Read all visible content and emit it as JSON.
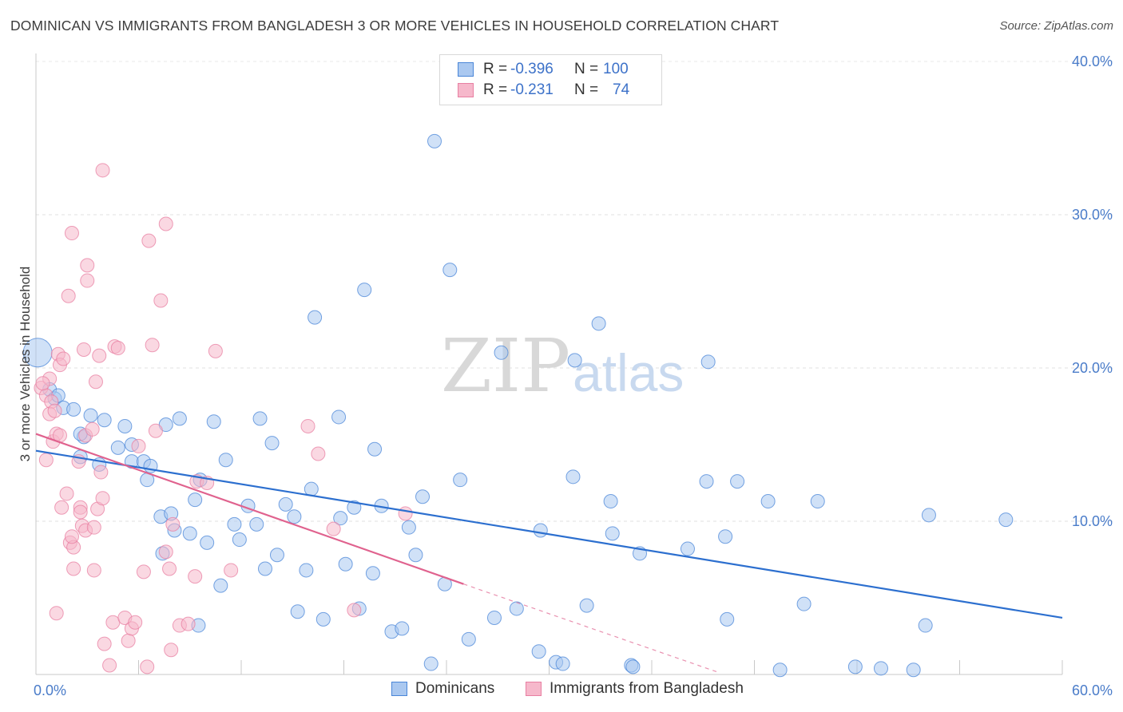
{
  "header": {
    "title": "DOMINICAN VS IMMIGRANTS FROM BANGLADESH 3 OR MORE VEHICLES IN HOUSEHOLD CORRELATION CHART",
    "source": "Source: ZipAtlas.com"
  },
  "watermark": {
    "zip": "ZIP",
    "atlas": "atlas"
  },
  "legend": {
    "rows": [
      {
        "swatch_color": "#aac8f0",
        "r_label": "R =",
        "r_value": "-0.396",
        "n_label": "N =",
        "n_value": "100"
      },
      {
        "swatch_color": "#f6b8cb",
        "r_label": "R =",
        "r_value": "-0.231",
        "n_label": "N =",
        "n_value": "74"
      }
    ]
  },
  "bottom_legend": {
    "items": [
      {
        "label": "Dominicans",
        "color": "#aac8f0"
      },
      {
        "label": "Immigrants from Bangladesh",
        "color": "#f6b8cb"
      }
    ]
  },
  "chart_data": {
    "type": "scatter",
    "title": "DOMINICAN VS IMMIGRANTS FROM BANGLADESH 3 OR MORE VEHICLES IN HOUSEHOLD CORRELATION CHART",
    "ylabel": "3 or more Vehicles in Household",
    "xlabel": "",
    "xlim": [
      0,
      60
    ],
    "ylim": [
      0,
      40
    ],
    "x_ticks": [
      {
        "value": 0,
        "label": "0.0%"
      },
      {
        "value": 60,
        "label": "60.0%"
      }
    ],
    "y_ticks": [
      {
        "value": 10,
        "label": "10.0%"
      },
      {
        "value": 20,
        "label": "20.0%"
      },
      {
        "value": 30,
        "label": "30.0%"
      },
      {
        "value": 40,
        "label": "40.0%"
      }
    ],
    "grid": true,
    "legend_position": "top-center",
    "series": [
      {
        "name": "Dominicans",
        "color": "#4a86d8",
        "fill": "#aac8f0",
        "trend": {
          "x0": 0,
          "y0": 14.6,
          "x1": 60,
          "y1": 3.7,
          "color": "#2c6fcf"
        },
        "points": [
          [
            0.1,
            21.0
          ],
          [
            0.8,
            18.6
          ],
          [
            1.1,
            18.0
          ],
          [
            1.6,
            17.4
          ],
          [
            2.2,
            17.3
          ],
          [
            2.8,
            15.5
          ],
          [
            3.2,
            16.9
          ],
          [
            3.7,
            13.7
          ],
          [
            2.6,
            14.2
          ],
          [
            4.0,
            16.6
          ],
          [
            4.8,
            14.8
          ],
          [
            5.2,
            16.2
          ],
          [
            5.6,
            15.0
          ],
          [
            5.6,
            13.9
          ],
          [
            6.3,
            13.9
          ],
          [
            6.5,
            12.7
          ],
          [
            6.7,
            13.6
          ],
          [
            7.4,
            7.9
          ],
          [
            7.3,
            10.3
          ],
          [
            7.6,
            16.3
          ],
          [
            7.9,
            10.5
          ],
          [
            8.1,
            9.4
          ],
          [
            8.4,
            16.7
          ],
          [
            9.0,
            9.2
          ],
          [
            9.3,
            11.4
          ],
          [
            9.6,
            12.7
          ],
          [
            9.5,
            3.2
          ],
          [
            10.0,
            8.6
          ],
          [
            10.4,
            16.5
          ],
          [
            10.8,
            5.8
          ],
          [
            11.1,
            14.0
          ],
          [
            11.6,
            9.8
          ],
          [
            11.9,
            8.8
          ],
          [
            12.4,
            11.0
          ],
          [
            12.9,
            9.8
          ],
          [
            13.1,
            16.7
          ],
          [
            13.4,
            6.9
          ],
          [
            13.8,
            15.1
          ],
          [
            14.1,
            7.8
          ],
          [
            14.6,
            11.1
          ],
          [
            15.1,
            10.3
          ],
          [
            15.3,
            4.1
          ],
          [
            15.8,
            6.8
          ],
          [
            16.1,
            12.1
          ],
          [
            16.3,
            23.3
          ],
          [
            16.8,
            3.6
          ],
          [
            17.7,
            16.8
          ],
          [
            17.8,
            10.2
          ],
          [
            18.1,
            7.2
          ],
          [
            18.6,
            10.9
          ],
          [
            18.9,
            4.3
          ],
          [
            19.2,
            25.1
          ],
          [
            19.7,
            6.6
          ],
          [
            19.8,
            14.7
          ],
          [
            20.2,
            11.0
          ],
          [
            20.8,
            2.8
          ],
          [
            21.4,
            3.0
          ],
          [
            21.8,
            9.6
          ],
          [
            22.2,
            7.8
          ],
          [
            22.6,
            11.6
          ],
          [
            23.1,
            0.7
          ],
          [
            23.3,
            34.8
          ],
          [
            23.9,
            5.9
          ],
          [
            24.2,
            26.4
          ],
          [
            24.8,
            12.7
          ],
          [
            25.3,
            2.3
          ],
          [
            26.8,
            3.7
          ],
          [
            27.2,
            21.0
          ],
          [
            28.1,
            4.3
          ],
          [
            29.4,
            1.5
          ],
          [
            29.5,
            9.4
          ],
          [
            30.4,
            0.8
          ],
          [
            30.8,
            0.7
          ],
          [
            31.4,
            12.9
          ],
          [
            31.5,
            20.5
          ],
          [
            32.2,
            4.5
          ],
          [
            32.9,
            22.9
          ],
          [
            33.6,
            11.3
          ],
          [
            33.7,
            9.2
          ],
          [
            34.8,
            0.6
          ],
          [
            34.9,
            0.5
          ],
          [
            35.3,
            7.9
          ],
          [
            38.1,
            8.2
          ],
          [
            39.2,
            12.6
          ],
          [
            39.3,
            20.4
          ],
          [
            40.3,
            9.0
          ],
          [
            40.4,
            3.6
          ],
          [
            41.0,
            12.6
          ],
          [
            42.8,
            11.3
          ],
          [
            43.5,
            0.3
          ],
          [
            44.9,
            4.6
          ],
          [
            45.7,
            11.3
          ],
          [
            47.9,
            0.5
          ],
          [
            49.4,
            0.4
          ],
          [
            51.3,
            0.3
          ],
          [
            52.0,
            3.2
          ],
          [
            52.2,
            10.4
          ],
          [
            56.7,
            10.1
          ],
          [
            1.3,
            18.2
          ],
          [
            2.6,
            15.7
          ]
        ]
      },
      {
        "name": "Immigrants from Bangladesh",
        "color": "#e87fa2",
        "fill": "#f6b8cb",
        "trend": {
          "x0": 0,
          "y0": 15.7,
          "x1": 25,
          "y1": 5.9,
          "color": "#e0628e"
        },
        "trend_extension": {
          "x0": 25,
          "y0": 5.9,
          "x1": 40,
          "y1": 0.1
        },
        "points": [
          [
            0.3,
            18.7
          ],
          [
            0.6,
            18.2
          ],
          [
            0.8,
            19.3
          ],
          [
            0.9,
            17.8
          ],
          [
            1.0,
            15.2
          ],
          [
            0.6,
            14.0
          ],
          [
            0.8,
            17.0
          ],
          [
            1.1,
            17.2
          ],
          [
            1.2,
            15.7
          ],
          [
            1.4,
            15.6
          ],
          [
            1.2,
            4.0
          ],
          [
            1.3,
            20.9
          ],
          [
            1.4,
            20.2
          ],
          [
            1.6,
            20.6
          ],
          [
            1.5,
            10.9
          ],
          [
            1.8,
            11.8
          ],
          [
            1.9,
            24.7
          ],
          [
            2.0,
            8.6
          ],
          [
            2.1,
            28.8
          ],
          [
            2.2,
            8.3
          ],
          [
            2.2,
            6.9
          ],
          [
            2.1,
            9.0
          ],
          [
            2.5,
            13.9
          ],
          [
            2.6,
            10.9
          ],
          [
            2.6,
            10.6
          ],
          [
            2.7,
            9.7
          ],
          [
            2.8,
            21.2
          ],
          [
            2.9,
            9.4
          ],
          [
            2.9,
            15.6
          ],
          [
            3.0,
            26.7
          ],
          [
            3.0,
            25.7
          ],
          [
            3.3,
            16.0
          ],
          [
            3.4,
            9.6
          ],
          [
            3.4,
            6.8
          ],
          [
            3.5,
            19.1
          ],
          [
            3.6,
            10.8
          ],
          [
            3.7,
            20.8
          ],
          [
            3.8,
            13.2
          ],
          [
            3.9,
            11.5
          ],
          [
            3.9,
            32.9
          ],
          [
            4.0,
            2.0
          ],
          [
            4.3,
            0.6
          ],
          [
            4.5,
            3.4
          ],
          [
            4.6,
            21.4
          ],
          [
            4.8,
            21.3
          ],
          [
            5.2,
            3.7
          ],
          [
            5.4,
            2.2
          ],
          [
            5.6,
            3.0
          ],
          [
            5.8,
            3.4
          ],
          [
            6.0,
            14.9
          ],
          [
            6.3,
            6.7
          ],
          [
            6.5,
            0.5
          ],
          [
            6.6,
            28.3
          ],
          [
            6.8,
            21.5
          ],
          [
            7.0,
            15.9
          ],
          [
            7.3,
            24.4
          ],
          [
            7.6,
            29.4
          ],
          [
            7.6,
            8.0
          ],
          [
            7.8,
            6.9
          ],
          [
            7.9,
            1.6
          ],
          [
            8.0,
            9.8
          ],
          [
            8.4,
            3.2
          ],
          [
            8.9,
            3.3
          ],
          [
            9.3,
            6.4
          ],
          [
            9.4,
            12.6
          ],
          [
            10.0,
            12.5
          ],
          [
            10.5,
            21.1
          ],
          [
            11.4,
            6.8
          ],
          [
            15.9,
            16.2
          ],
          [
            16.5,
            14.4
          ],
          [
            17.4,
            9.5
          ],
          [
            18.6,
            4.2
          ],
          [
            21.6,
            10.5
          ],
          [
            0.4,
            19.0
          ]
        ]
      }
    ]
  }
}
